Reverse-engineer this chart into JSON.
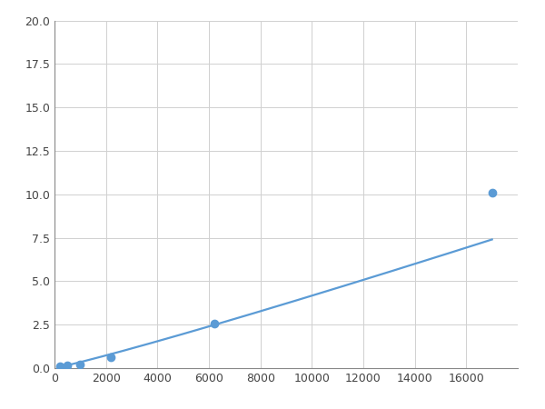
{
  "x_points": [
    200,
    500,
    1000,
    2200,
    6200,
    17000
  ],
  "y_points": [
    0.1,
    0.15,
    0.2,
    0.65,
    2.55,
    10.1
  ],
  "line_color": "#5b9bd5",
  "marker_color": "#5b9bd5",
  "marker_size": 6,
  "line_width": 1.6,
  "xlim": [
    0,
    18000
  ],
  "ylim": [
    0,
    20.0
  ],
  "xticks": [
    0,
    2000,
    4000,
    6000,
    8000,
    10000,
    12000,
    14000,
    16000
  ],
  "yticks": [
    0.0,
    2.5,
    5.0,
    7.5,
    10.0,
    12.5,
    15.0,
    17.5,
    20.0
  ],
  "grid_color": "#d0d0d0",
  "background_color": "#ffffff",
  "fig_bg_color": "#ffffff"
}
